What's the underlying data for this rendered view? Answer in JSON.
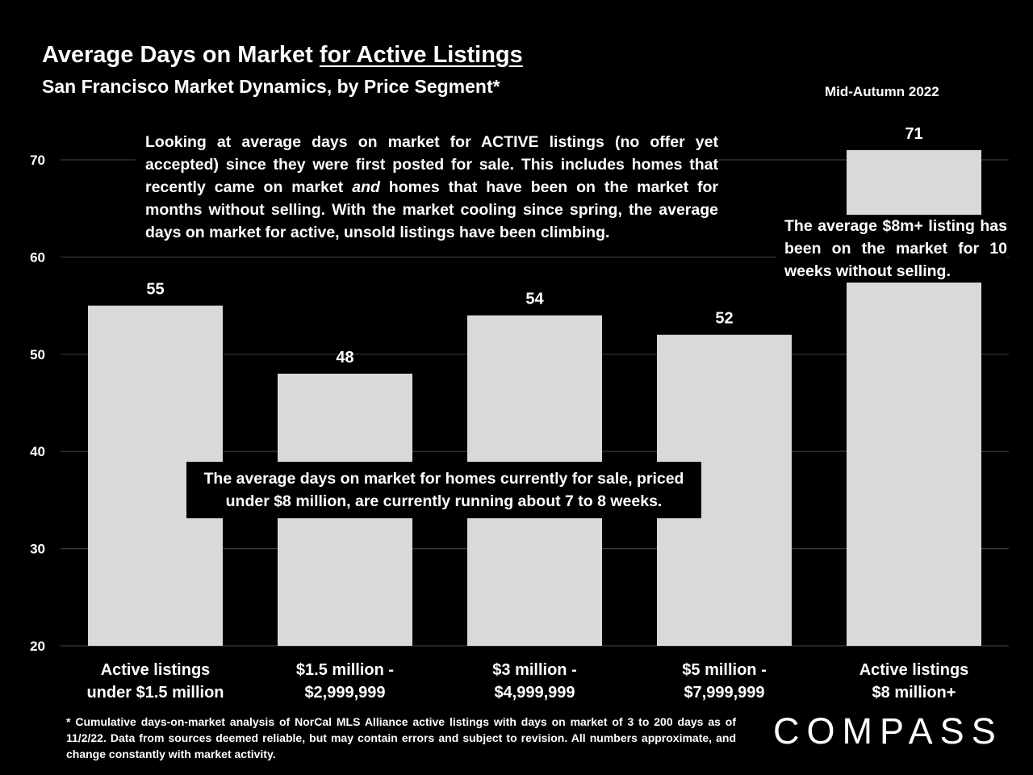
{
  "title": {
    "prefix": "Average Days on Market ",
    "underlined": "for Active Listings",
    "subtitle": "San Francisco Market Dynamics, by Price Segment*",
    "period": "Mid-Autumn 2022"
  },
  "chart_data": {
    "type": "bar",
    "categories": [
      [
        "Active listings",
        "under $1.5 million"
      ],
      [
        "$1.5 million -",
        "$2,999,999"
      ],
      [
        "$3 million -",
        "$4,999,999"
      ],
      [
        "$5 million -",
        "$7,999,999"
      ],
      [
        "Active listings",
        "$8 million+"
      ]
    ],
    "values": [
      55,
      48,
      54,
      52,
      71
    ],
    "ylim": [
      20,
      70
    ],
    "yticks": [
      20,
      30,
      40,
      50,
      60,
      70
    ],
    "grid": true,
    "colors": {
      "bar": "#d9d9d9",
      "grid": "#3a3a3a",
      "background": "#000000"
    }
  },
  "annotations": {
    "top_html": "Looking at average days on market for ACTIVE listings (no offer yet accepted) since they were first posted for sale. This includes homes that recently came on market <i>and</i> homes that have been on the market for months without selling. With the market cooling since spring, the average days on market for active, unsold listings have been climbing.",
    "right": "The average $8m+ listing has been on the market for 10 weeks without selling.",
    "middle_line1": "The average days on market for homes currently for sale, priced",
    "middle_line2": "under $8 million, are currently running about 7 to 8 weeks."
  },
  "footnote": "* Cumulative days-on-market analysis of NorCal MLS Alliance active listings with days on market of 3 to 200 days as of 11/2/22. Data from sources deemed reliable, but may contain errors and subject to revision. All numbers approximate, and change constantly with market activity.",
  "logo": {
    "text": "COMPASS"
  }
}
